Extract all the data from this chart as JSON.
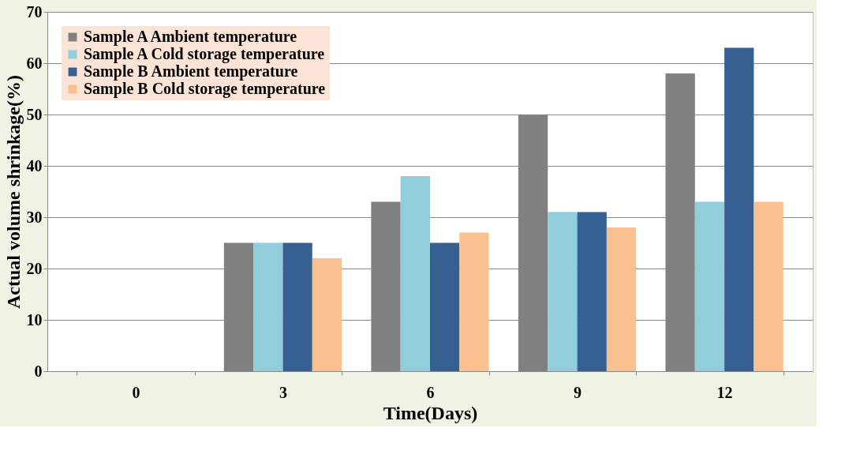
{
  "chart_data": {
    "type": "bar",
    "xlabel": "Time(Days)",
    "ylabel": "Actual volume shrinkage(%)",
    "categories": [
      "0",
      "3",
      "6",
      "9",
      "12"
    ],
    "series": [
      {
        "name": "Sample A Ambient temperature",
        "color": "#808080",
        "values": [
          0,
          25,
          33,
          50,
          58
        ]
      },
      {
        "name": "Sample A Cold storage temperature",
        "color": "#92cddc",
        "values": [
          0,
          25,
          38,
          31,
          33
        ]
      },
      {
        "name": "Sample B Ambient temperature",
        "color": "#366092",
        "values": [
          0,
          25,
          25,
          31,
          63
        ]
      },
      {
        "name": "Sample B Cold storage temperature",
        "color": "#fac090",
        "values": [
          0,
          22,
          27,
          28,
          33
        ]
      }
    ],
    "ylim": [
      0,
      70
    ],
    "yticks": [
      0,
      10,
      20,
      30,
      40,
      50,
      60,
      70
    ],
    "grid": "y",
    "legend": "top left"
  }
}
